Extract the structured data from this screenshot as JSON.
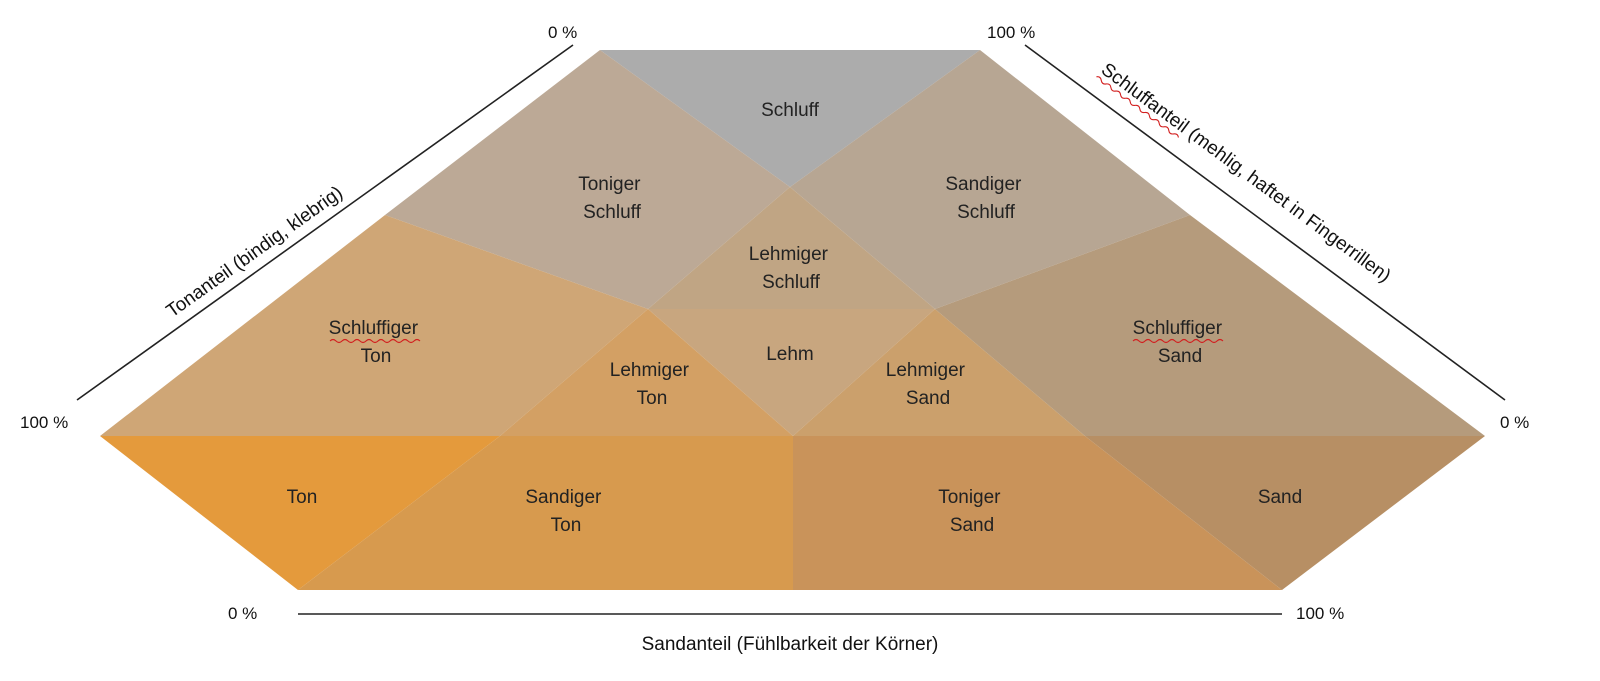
{
  "regions": {
    "schluff": {
      "lines": [
        "Schluff"
      ],
      "color": "#acacac"
    },
    "toniger_schluff": {
      "lines": [
        "Toniger",
        "Schluff"
      ],
      "color": "#bca996"
    },
    "sandiger_schluff": {
      "lines": [
        "Sandiger",
        "Schluff"
      ],
      "color": "#b7a693"
    },
    "lehmiger_schluff": {
      "lines": [
        "Lehmiger",
        "Schluff"
      ],
      "color": "#c0a584"
    },
    "schluffiger_ton": {
      "lines": [
        "Schluffiger",
        "Ton"
      ],
      "color": "#cfa676"
    },
    "lehm": {
      "lines": [
        "Lehm"
      ],
      "color": "#c8a67f"
    },
    "lehmiger_ton": {
      "lines": [
        "Lehmiger",
        "Ton"
      ],
      "color": "#d3a064"
    },
    "lehmiger_sand": {
      "lines": [
        "Lehmiger",
        "Sand"
      ],
      "color": "#cba06c"
    },
    "schluffiger_sand": {
      "lines": [
        "Schluffiger",
        "Sand"
      ],
      "color": "#b59b7c"
    },
    "ton": {
      "lines": [
        "Ton"
      ],
      "color": "#e49a3c"
    },
    "sandiger_ton": {
      "lines": [
        "Sandiger",
        "Ton"
      ],
      "color": "#d79a4e"
    },
    "toniger_sand": {
      "lines": [
        "Toniger",
        "Sand"
      ],
      "color": "#c9935a"
    },
    "sand": {
      "lines": [
        "Sand"
      ],
      "color": "#b78f64"
    }
  },
  "axes": {
    "ton": {
      "label": "Tonanteil (bindig, klebrig)",
      "start": "0 %",
      "end": "100 %"
    },
    "schluff": {
      "label": "Schluffanteil (mehlig, haftet in Fingerrillen)",
      "start": "100 %",
      "end": "0 %"
    },
    "sand": {
      "label": "Sandanteil (Fühlbarkeit der Körner)",
      "start": "0 %",
      "end": "100 %"
    }
  }
}
